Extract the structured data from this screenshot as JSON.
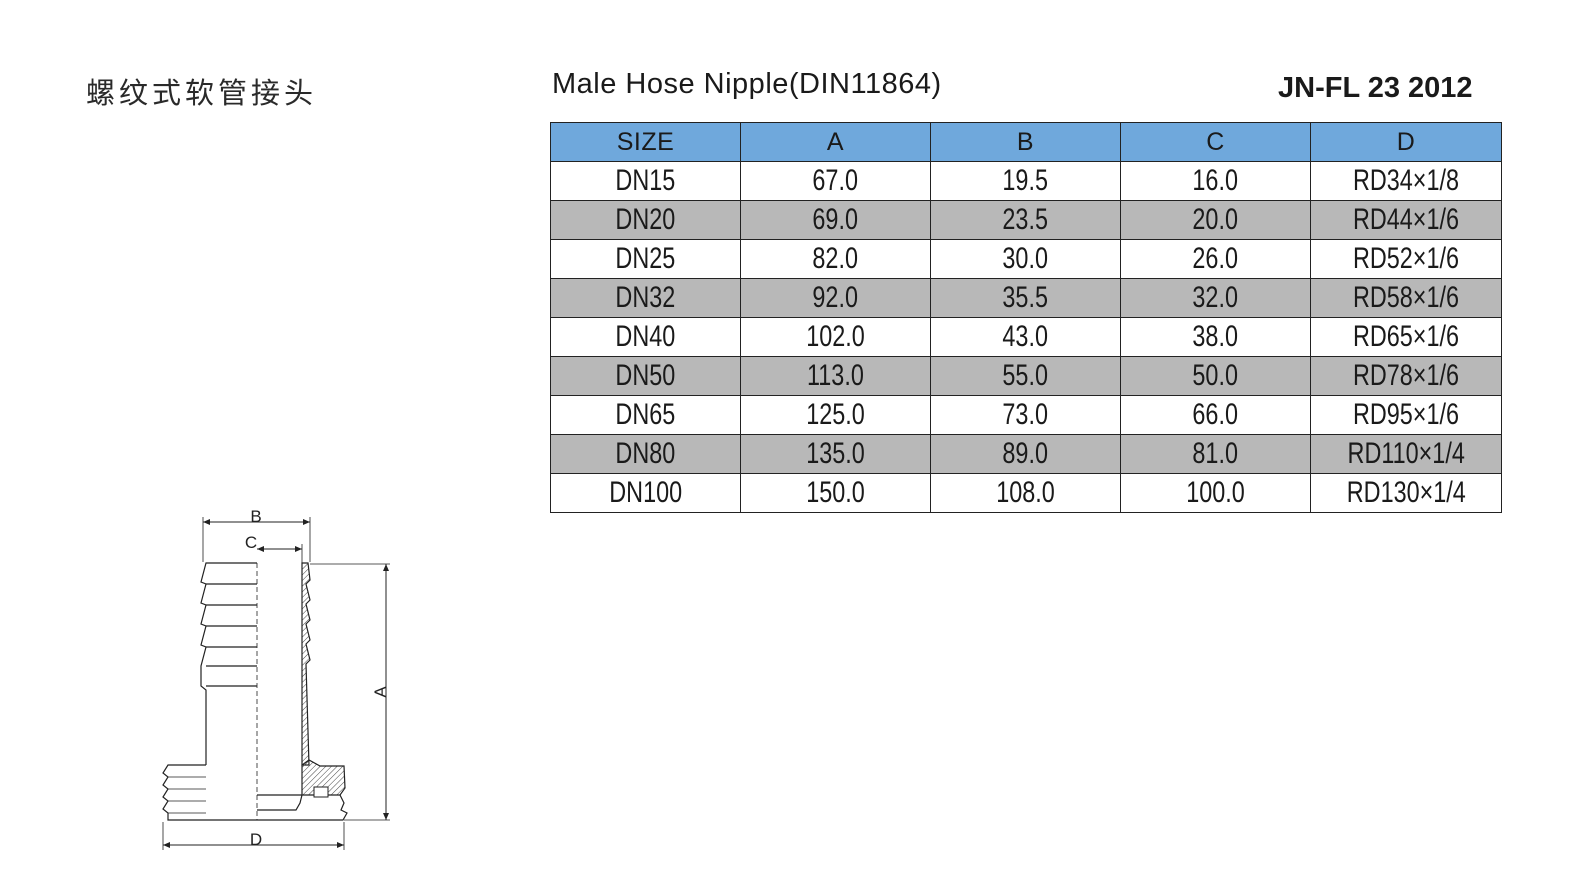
{
  "header": {
    "title_cn": "螺纹式软管接头",
    "title_en": "Male Hose Nipple(DIN11864)",
    "code": "JN-FL 23 2012"
  },
  "table": {
    "columns": [
      "SIZE",
      "A",
      "B",
      "C",
      "D"
    ],
    "rows": [
      [
        "DN15",
        "67.0",
        "19.5",
        "16.0",
        "RD34×1/8"
      ],
      [
        "DN20",
        "69.0",
        "23.5",
        "20.0",
        "RD44×1/6"
      ],
      [
        "DN25",
        "82.0",
        "30.0",
        "26.0",
        "RD52×1/6"
      ],
      [
        "DN32",
        "92.0",
        "35.5",
        "32.0",
        "RD58×1/6"
      ],
      [
        "DN40",
        "102.0",
        "43.0",
        "38.0",
        "RD65×1/6"
      ],
      [
        "DN50",
        "113.0",
        "55.0",
        "50.0",
        "RD78×1/6"
      ],
      [
        "DN65",
        "125.0",
        "73.0",
        "66.0",
        "RD95×1/6"
      ],
      [
        "DN80",
        "135.0",
        "89.0",
        "81.0",
        "RD110×1/4"
      ],
      [
        "DN100",
        "150.0",
        "108.0",
        "100.0",
        "RD130×1/4"
      ]
    ]
  },
  "drawing": {
    "labels": {
      "b": "B",
      "c": "C",
      "a": "A",
      "d": "D"
    }
  },
  "colors": {
    "header_bg": "#6fa8dc",
    "alt_row_bg": "#b8b8b8"
  }
}
